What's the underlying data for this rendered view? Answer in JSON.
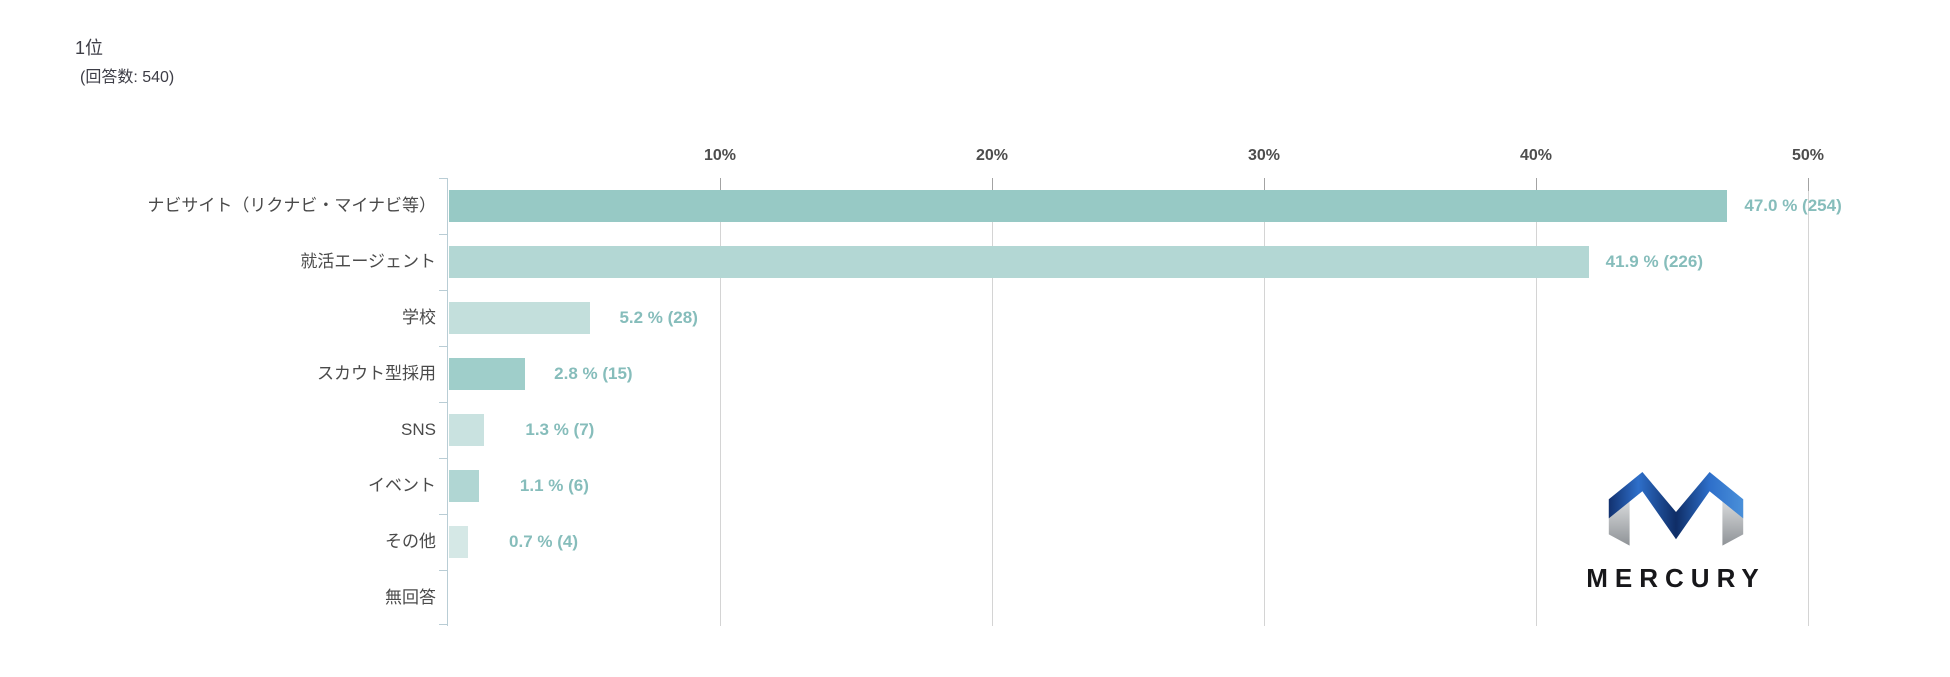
{
  "chart_data": {
    "type": "bar",
    "orientation": "horizontal",
    "title": "1位",
    "subtitle": "(回答数: 540)",
    "categories": [
      "ナビサイト（リクナビ・マイナビ等）",
      "就活エージェント",
      "学校",
      "スカウト型採用",
      "SNS",
      "イベント",
      "その他",
      "無回答"
    ],
    "values": [
      47.0,
      41.9,
      5.2,
      2.8,
      1.3,
      1.1,
      0.7,
      0
    ],
    "counts": [
      254,
      226,
      28,
      15,
      7,
      6,
      4,
      0
    ],
    "value_labels": [
      "47.0 % (254)",
      "41.9 % (226)",
      "5.2 % (28)",
      "2.8 % (15)",
      "1.3 % (7)",
      "1.1 % (6)",
      "0.7 % (4)",
      ""
    ],
    "bar_colors": [
      "#97c9c5",
      "#b3d7d4",
      "#c3dfdc",
      "#9fceca",
      "#c9e2e0",
      "#b0d6d3",
      "#d5e8e6",
      ""
    ],
    "x_tick_labels": [
      "10%",
      "20%",
      "30%",
      "40%",
      "50%"
    ],
    "x_tick_values": [
      10,
      20,
      30,
      40,
      50
    ],
    "xlim": [
      0,
      55
    ],
    "grid": true,
    "legend": false,
    "value_label_color": "#86bdbb",
    "category_label_color": "#4a4a4a",
    "tick_label_color": "#4d4d4d",
    "gridline_color": "#d4d4d4",
    "axis_color": "#b9cdd5"
  },
  "logo": {
    "brand": "MERCURY",
    "icon": "mercury-m-icon",
    "blue_dark": "#12316f",
    "blue_bright": "#3f86d8",
    "silver_light": "#f0f1f2",
    "silver_dark": "#8f9397"
  }
}
